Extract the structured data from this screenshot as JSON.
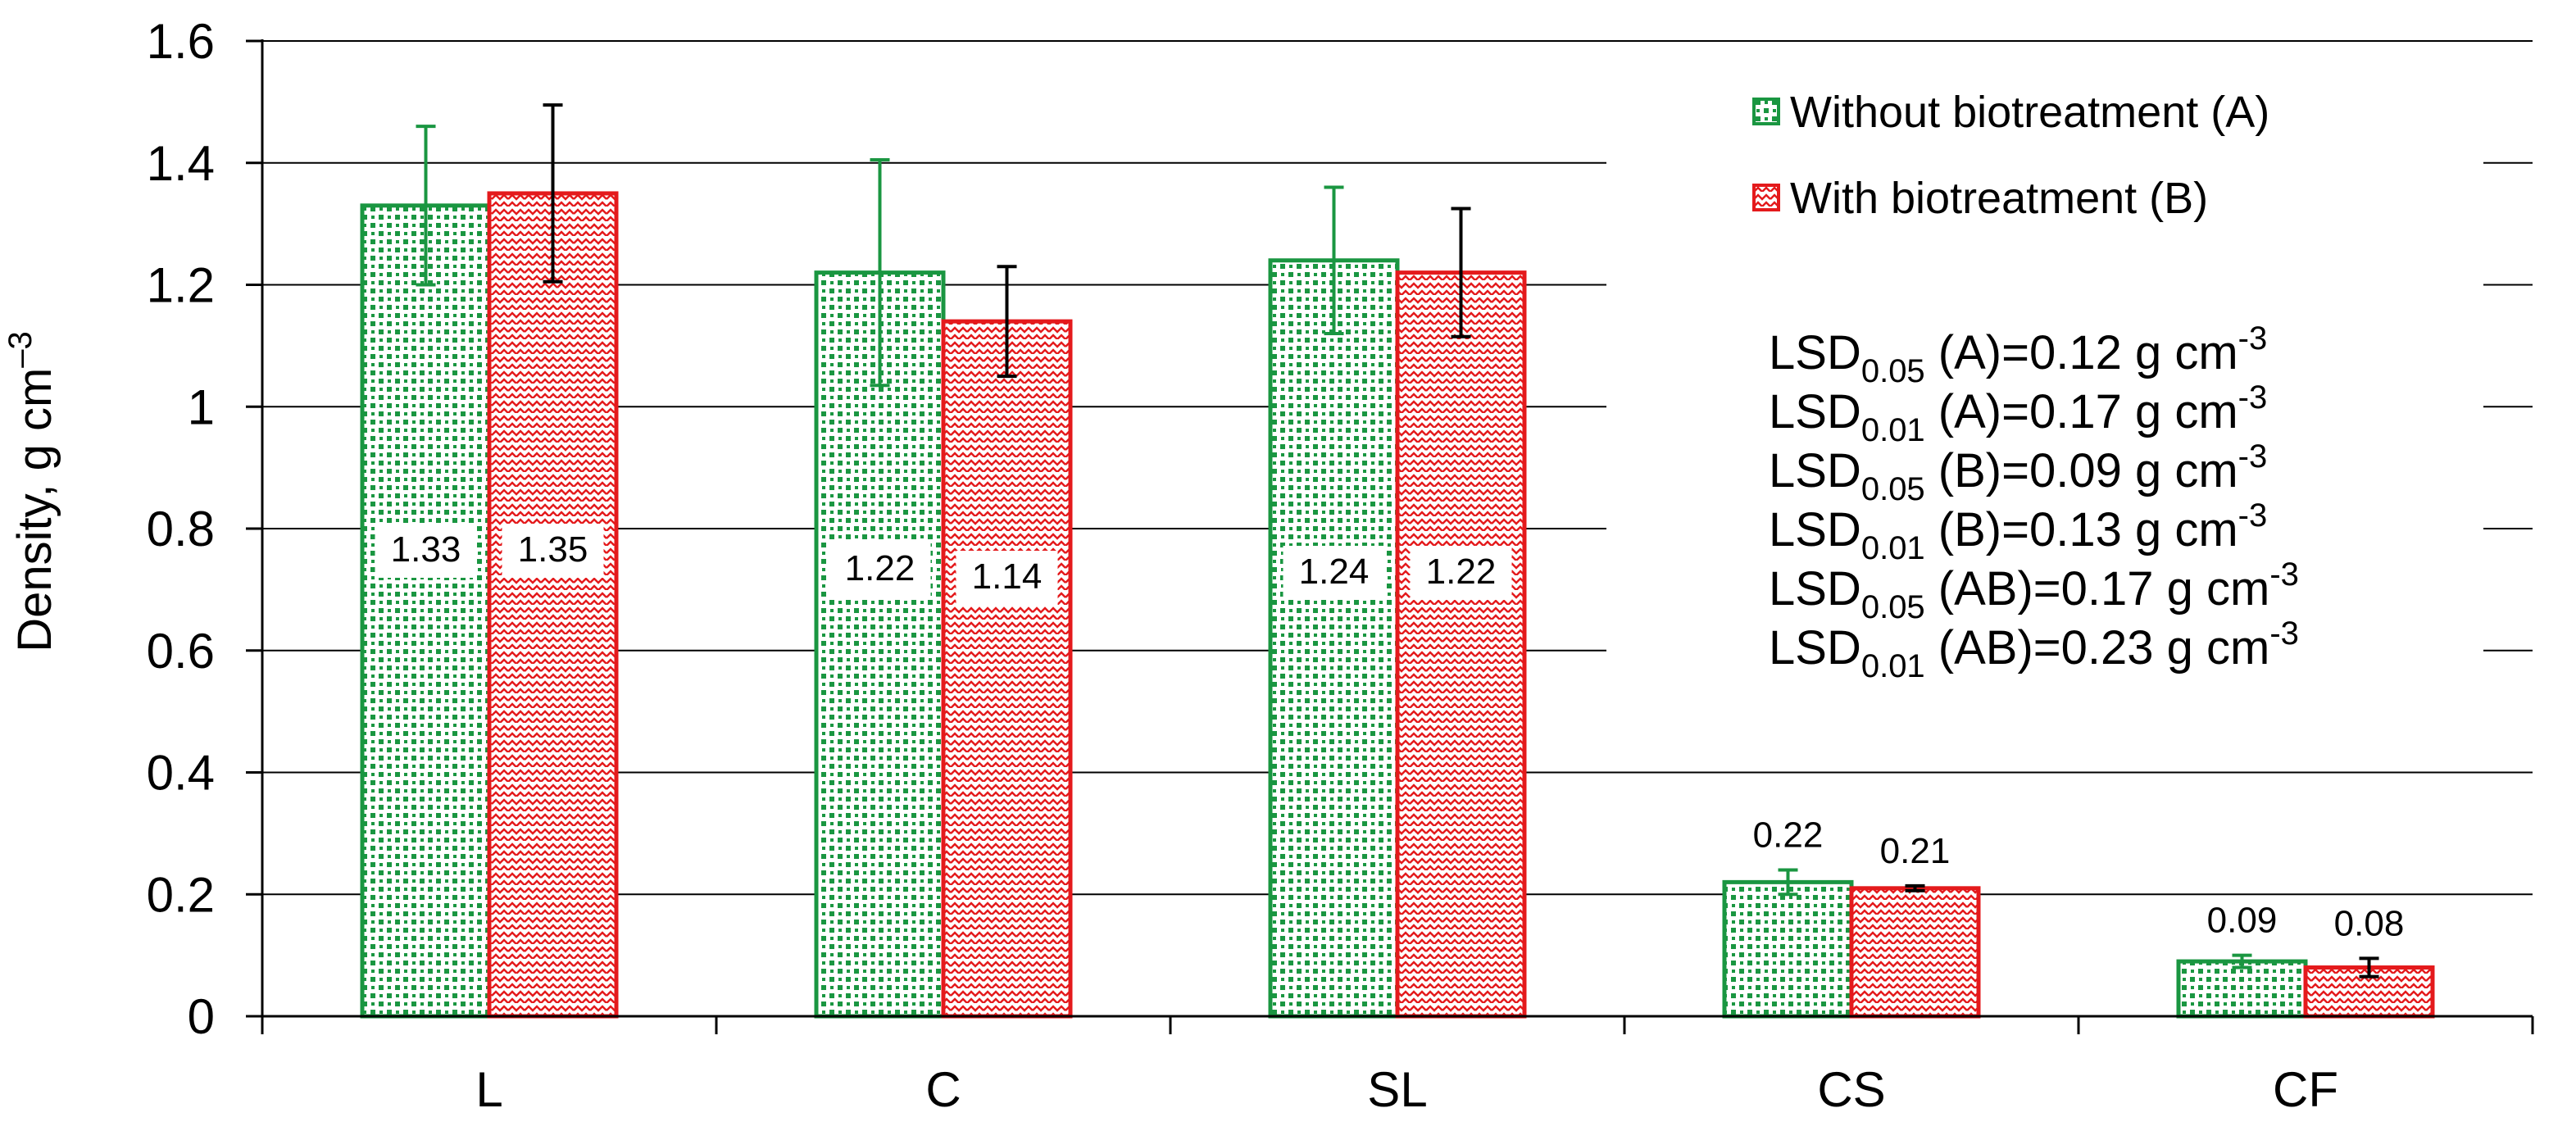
{
  "chart_data": {
    "type": "bar",
    "title": "",
    "xlabel": "",
    "ylabel": "Density, g cm",
    "ylabel_superscript": "–3",
    "ylim": [
      0,
      1.6
    ],
    "yticks": [
      "0",
      "0.2",
      "0.4",
      "0.6",
      "0.8",
      "1",
      "1.2",
      "1.4",
      "1.6"
    ],
    "categories": [
      "L",
      "C",
      "SL",
      "CS",
      "CF"
    ],
    "series": [
      {
        "name": "Without biotreatment (A)",
        "color": "#1a9641",
        "pattern": "dots",
        "values": [
          1.33,
          1.22,
          1.24,
          0.22,
          0.09
        ],
        "labels": [
          "1.33",
          "1.22",
          "1.24",
          "0.22",
          "0.09"
        ],
        "errors": [
          0.13,
          0.185,
          0.12,
          0.02,
          0.01
        ]
      },
      {
        "name": "With biotreatment (B)",
        "color": "#e41a1c",
        "pattern": "zigzag",
        "values": [
          1.35,
          1.14,
          1.22,
          0.21,
          0.08
        ],
        "labels": [
          "1.35",
          "1.14",
          "1.22",
          "0.21",
          "0.08"
        ],
        "errors": [
          0.145,
          0.09,
          0.105,
          0.004,
          0.015
        ]
      }
    ],
    "legend_position": "top-right",
    "annotations": [
      {
        "pre": "LSD",
        "sub": "0.05",
        "post": " (A)=0.12 g cm",
        "sup": "-3"
      },
      {
        "pre": "LSD",
        "sub": "0.01",
        "post": " (A)=0.17 g cm",
        "sup": "-3"
      },
      {
        "pre": "LSD",
        "sub": "0.05",
        "post": " (B)=0.09 g cm",
        "sup": "-3"
      },
      {
        "pre": "LSD",
        "sub": "0.01",
        "post": " (B)=0.13 g cm",
        "sup": "-3"
      },
      {
        "pre": "LSD",
        "sub": "0.05",
        "post": " (AB)=0.17 g cm",
        "sup": "-3"
      },
      {
        "pre": "LSD",
        "sub": "0.01",
        "post": " (AB)=0.23 g cm",
        "sup": "-3"
      }
    ]
  }
}
